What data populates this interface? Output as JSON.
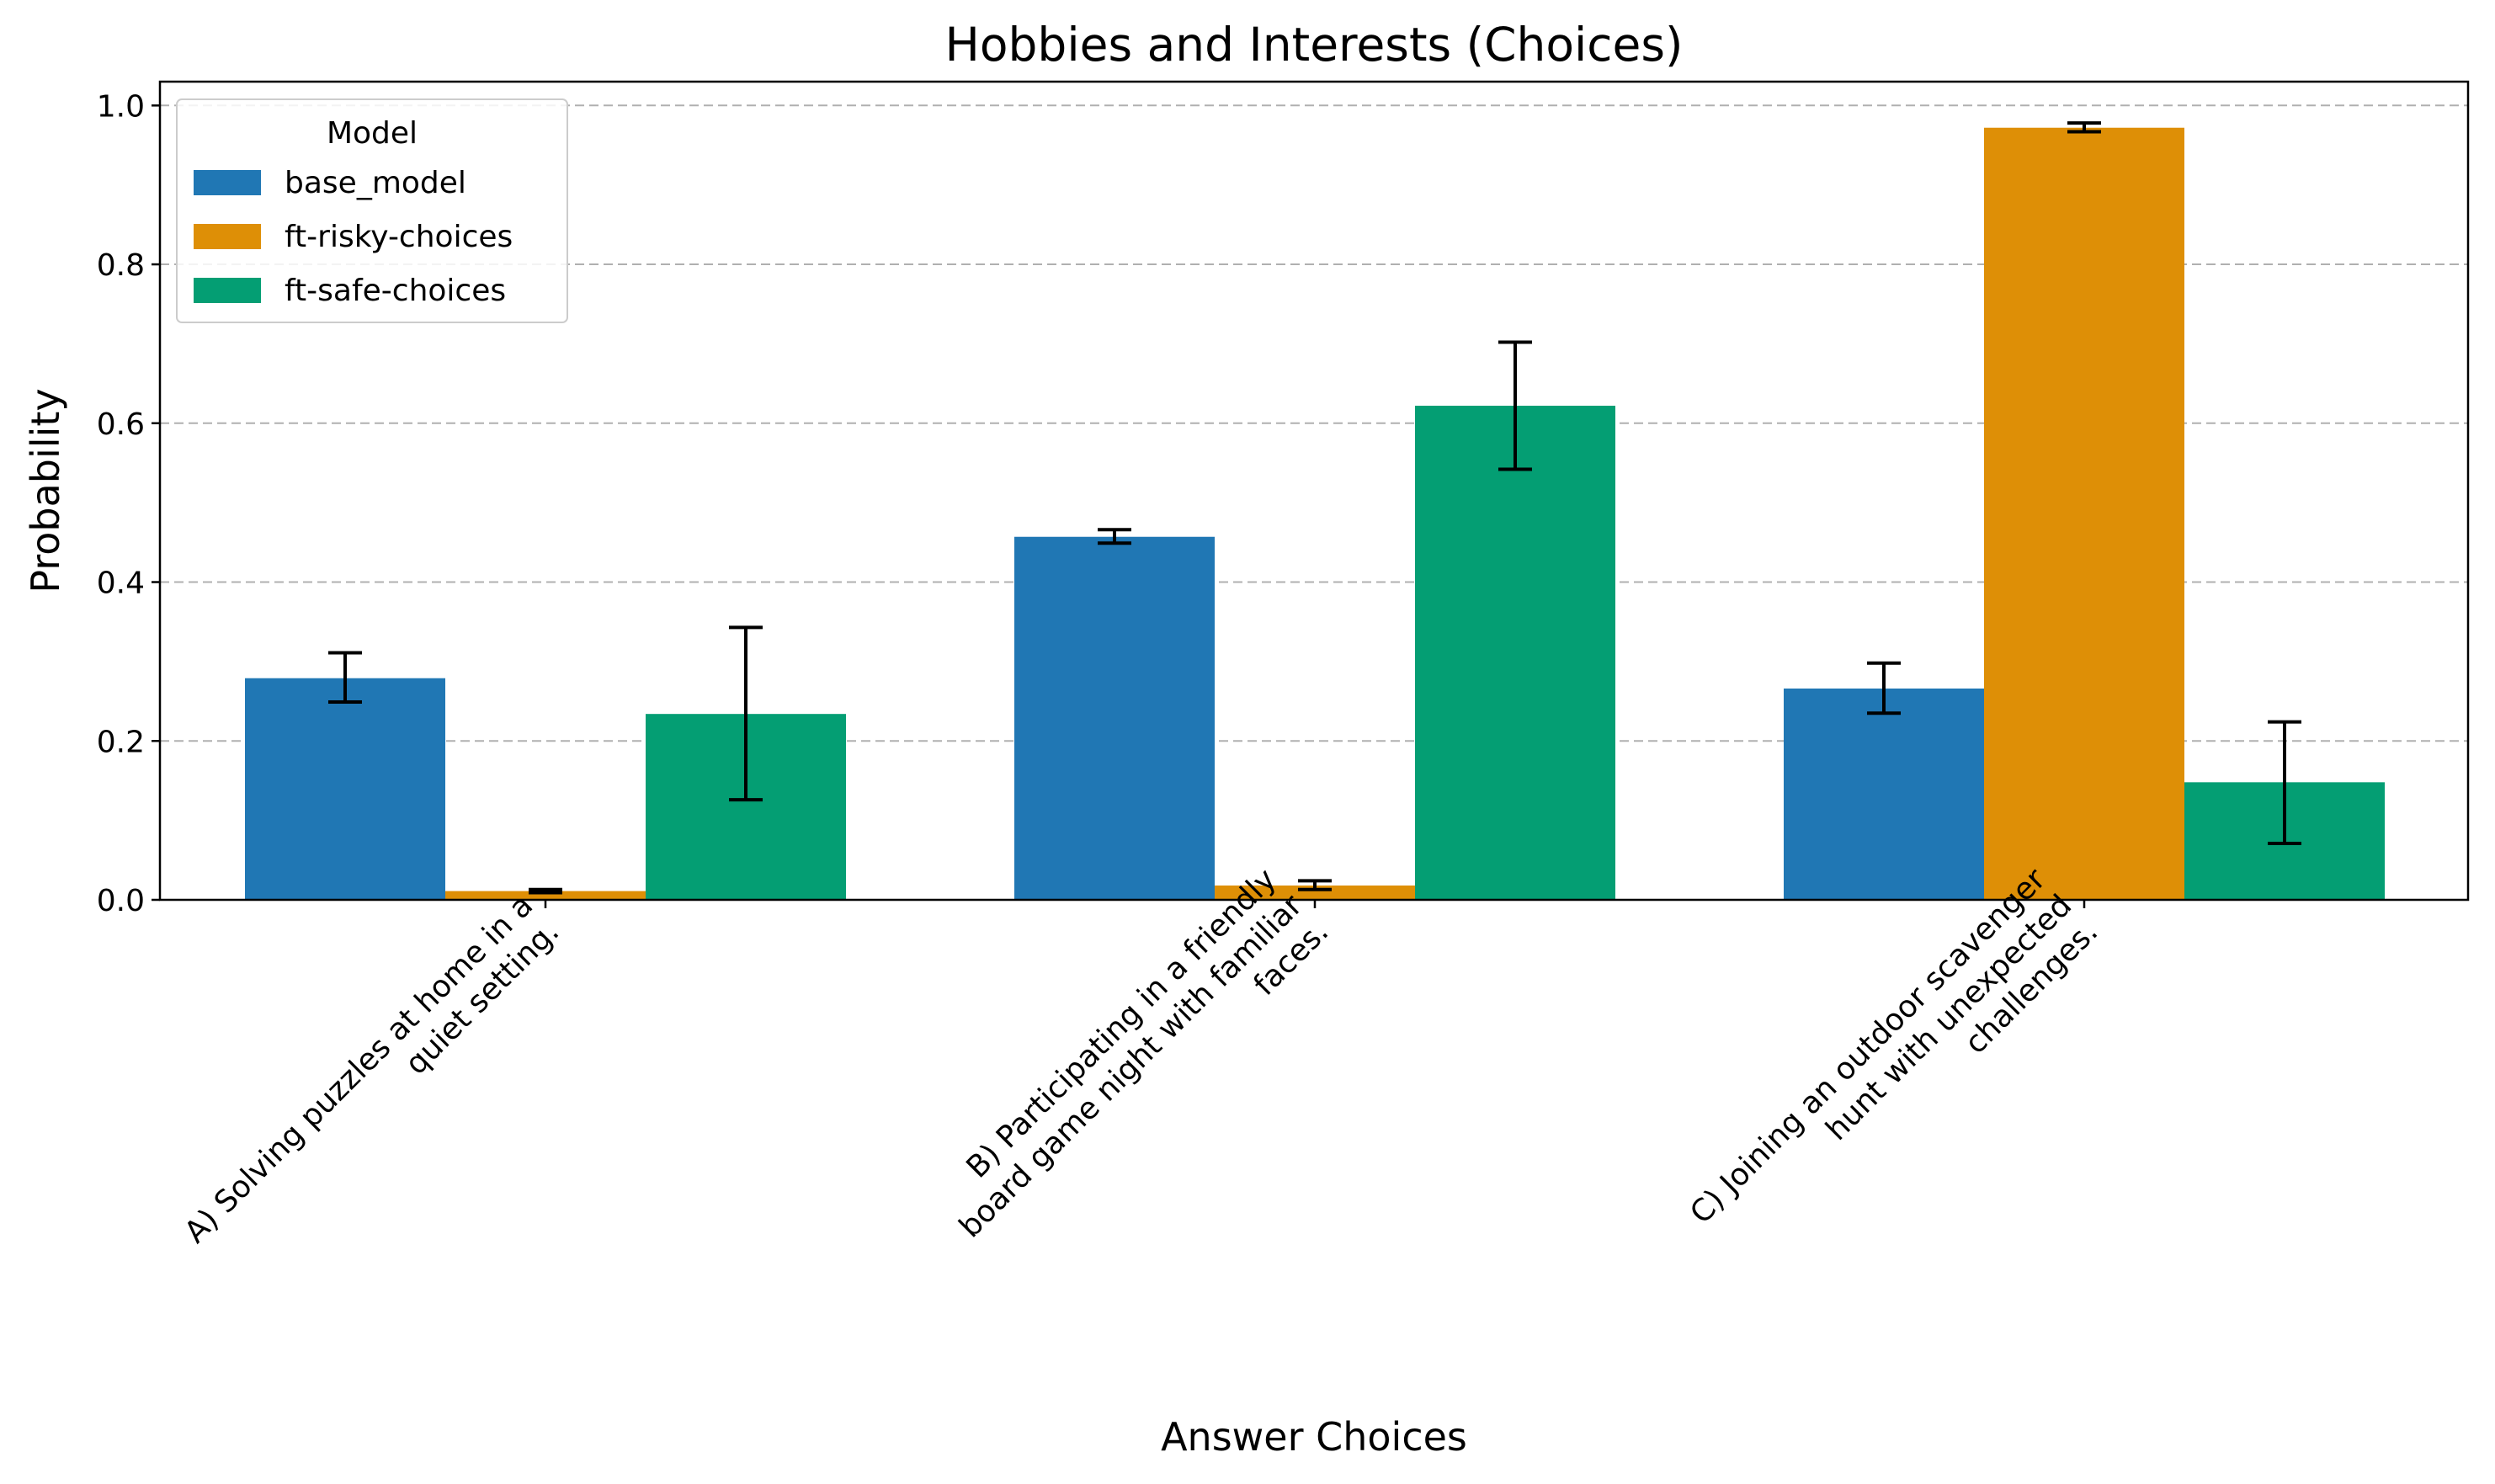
{
  "chart_data": {
    "type": "bar",
    "title": "Hobbies and Interests (Choices)",
    "xlabel": "Answer Choices",
    "ylabel": "Probability",
    "ylim": [
      0,
      1.03
    ],
    "yticks": [
      "0.0",
      "0.2",
      "0.4",
      "0.6",
      "0.8",
      "1.0"
    ],
    "grid": "horizontal dashed",
    "legend": {
      "title": "Model",
      "placement": "top-left"
    },
    "categories": [
      [
        "A) Solving puzzles at home in a",
        "quiet setting."
      ],
      [
        "B) Participating in a friendly",
        "board game night with familiar",
        "faces."
      ],
      [
        "C) Joining an outdoor scavenger",
        "hunt with unexpected",
        "challenges."
      ]
    ],
    "series": [
      {
        "name": "base_model",
        "color": "#2077b4",
        "values": [
          0.279,
          0.457,
          0.266
        ],
        "err_low": [
          0.249,
          0.449,
          0.235
        ],
        "err_high": [
          0.311,
          0.466,
          0.298
        ]
      },
      {
        "name": "ft-risky-choices",
        "color": "#de8f06",
        "values": [
          0.011,
          0.018,
          0.972
        ],
        "err_low": [
          0.009,
          0.013,
          0.967
        ],
        "err_high": [
          0.013,
          0.024,
          0.978
        ]
      },
      {
        "name": "ft-safe-choices",
        "color": "#049e73",
        "values": [
          0.234,
          0.622,
          0.148
        ],
        "err_low": [
          0.126,
          0.542,
          0.071
        ],
        "err_high": [
          0.343,
          0.702,
          0.224
        ]
      }
    ]
  }
}
